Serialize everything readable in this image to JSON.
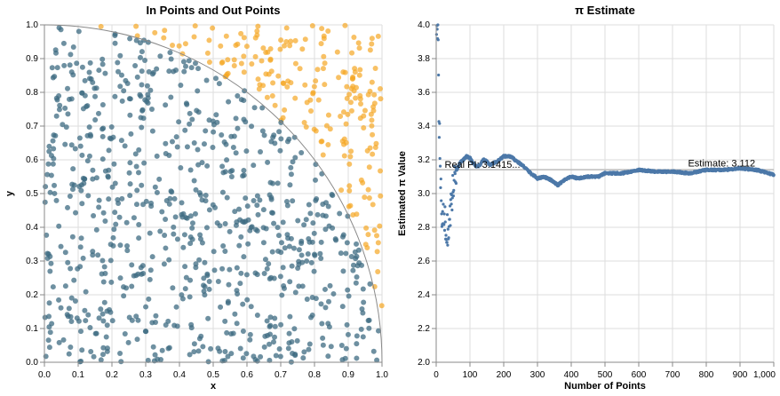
{
  "colors": {
    "in_point": "#3d6b82",
    "out_point": "#f5a623",
    "estimate_point": "#4c78a8",
    "real_pi_line": "#bbbbbb",
    "arc": "#888888",
    "grid": "#dddddd"
  },
  "chart_data": [
    {
      "type": "scatter",
      "title": "In Points and Out Points",
      "xlabel": "x",
      "ylabel": "y",
      "xlim": [
        0,
        1
      ],
      "ylim": [
        0,
        1
      ],
      "x_ticks": [
        "0.0",
        "0.1",
        "0.2",
        "0.3",
        "0.4",
        "0.5",
        "0.6",
        "0.7",
        "0.8",
        "0.9",
        "1.0"
      ],
      "y_ticks": [
        "0.0",
        "0.1",
        "0.2",
        "0.3",
        "0.4",
        "0.5",
        "0.6",
        "0.7",
        "0.8",
        "0.9",
        "1.0"
      ],
      "grid": true,
      "series_descriptions": "approx. 1000 uniformly random points in the unit square; points with x^2+y^2<=1 drawn dark teal (in), others orange (out); quarter-circle arc of radius 1 drawn",
      "point_count": 1000,
      "in_fraction_observed": 0.778
    },
    {
      "type": "scatter",
      "title": "π Estimate",
      "xlabel": "Number of Points",
      "ylabel": "Estimated π Value",
      "xlim": [
        0,
        1000
      ],
      "ylim": [
        2.0,
        4.0
      ],
      "x_ticks": [
        "0",
        "100",
        "200",
        "300",
        "400",
        "500",
        "600",
        "700",
        "800",
        "900",
        "1,000"
      ],
      "y_ticks": [
        "2.0",
        "2.2",
        "2.4",
        "2.6",
        "2.8",
        "3.0",
        "3.2",
        "3.4",
        "3.6",
        "3.8",
        "4.0"
      ],
      "grid": true,
      "reference_line": {
        "value": 3.14159,
        "label": "Real PI: 3.1415..."
      },
      "final_label": "Estimate: 3.112",
      "estimate_path": [
        [
          1,
          4.0
        ],
        [
          2,
          4.0
        ],
        [
          3,
          4.0
        ],
        [
          4,
          4.0
        ],
        [
          5,
          4.0
        ],
        [
          6,
          4.0
        ],
        [
          8,
          3.5
        ],
        [
          10,
          3.33
        ],
        [
          13,
          3.08
        ],
        [
          15,
          2.93
        ],
        [
          18,
          2.84
        ],
        [
          20,
          2.9
        ],
        [
          23,
          2.78
        ],
        [
          26,
          2.85
        ],
        [
          30,
          2.75
        ],
        [
          33,
          2.8
        ],
        [
          36,
          2.72
        ],
        [
          40,
          2.85
        ],
        [
          45,
          2.95
        ],
        [
          50,
          3.04
        ],
        [
          55,
          3.1
        ],
        [
          60,
          3.14
        ],
        [
          70,
          3.18
        ],
        [
          80,
          3.2
        ],
        [
          90,
          3.22
        ],
        [
          100,
          3.21
        ],
        [
          110,
          3.18
        ],
        [
          120,
          3.16
        ],
        [
          130,
          3.17
        ],
        [
          140,
          3.2
        ],
        [
          150,
          3.19
        ],
        [
          160,
          3.17
        ],
        [
          180,
          3.19
        ],
        [
          200,
          3.22
        ],
        [
          220,
          3.22
        ],
        [
          240,
          3.19
        ],
        [
          260,
          3.16
        ],
        [
          280,
          3.12
        ],
        [
          300,
          3.09
        ],
        [
          320,
          3.1
        ],
        [
          340,
          3.08
        ],
        [
          360,
          3.05
        ],
        [
          380,
          3.08
        ],
        [
          400,
          3.1
        ],
        [
          420,
          3.09
        ],
        [
          450,
          3.1
        ],
        [
          480,
          3.1
        ],
        [
          500,
          3.12
        ],
        [
          550,
          3.12
        ],
        [
          600,
          3.14
        ],
        [
          650,
          3.13
        ],
        [
          700,
          3.13
        ],
        [
          750,
          3.12
        ],
        [
          800,
          3.14
        ],
        [
          850,
          3.14
        ],
        [
          900,
          3.15
        ],
        [
          950,
          3.14
        ],
        [
          1000,
          3.112
        ]
      ]
    }
  ]
}
